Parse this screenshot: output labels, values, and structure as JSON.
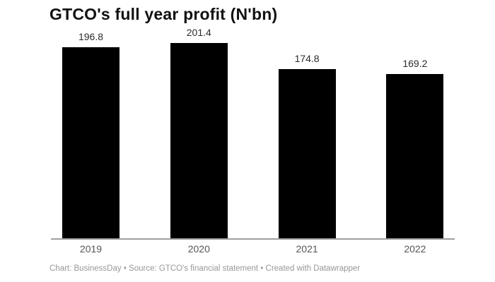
{
  "chart": {
    "title": "GTCO's full year profit (N'bn)",
    "footer": "Chart: BusinessDay • Source: GTCO's financial statement • Created with Datawrapper"
  },
  "chart_data": {
    "type": "bar",
    "title": "GTCO's full year profit (N'bn)",
    "categories": [
      "2019",
      "2020",
      "2021",
      "2022"
    ],
    "values": [
      196.8,
      201.4,
      174.8,
      169.2
    ],
    "value_labels": [
      "196.8",
      "201.4",
      "174.8",
      "169.2"
    ],
    "xlabel": "",
    "ylabel": "",
    "ylim": [
      0,
      210
    ],
    "grid": false,
    "legend_position": "none",
    "orientation": "vertical",
    "source_note": "Chart: BusinessDay • Source: GTCO's financial statement • Created with Datawrapper"
  },
  "colors": {
    "background": "#ffffff",
    "bar": "#000000",
    "axis_line": "#9f9f9f",
    "title_text": "#111111",
    "value_label_text": "#2b2b2b",
    "category_label_text": "#555555",
    "footer_text": "#979797"
  }
}
